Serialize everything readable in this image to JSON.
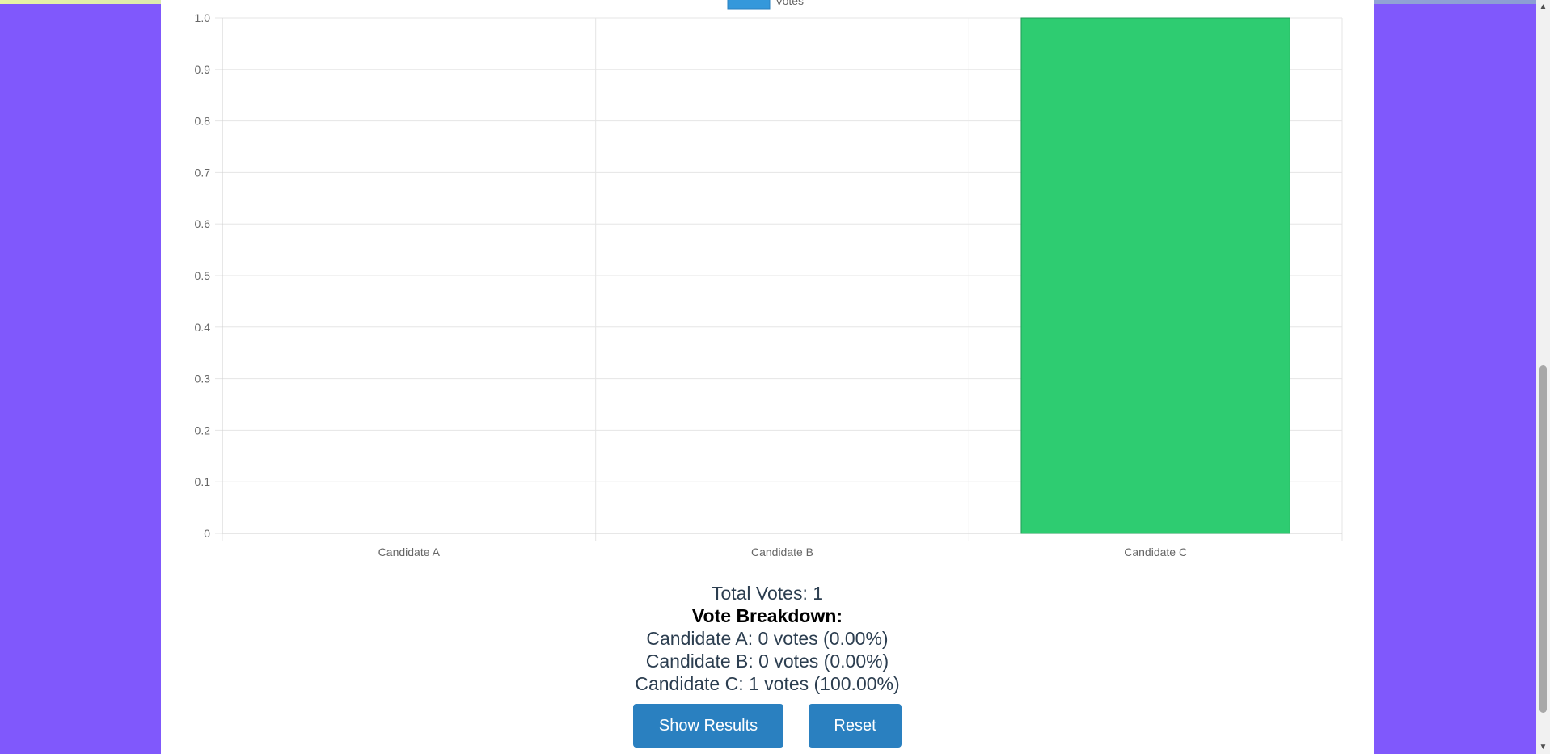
{
  "chart_data": {
    "type": "bar",
    "categories": [
      "Candidate A",
      "Candidate B",
      "Candidate C"
    ],
    "series": [
      {
        "name": "Votes",
        "values": [
          0,
          0,
          1
        ]
      }
    ],
    "ylim": [
      0,
      1.0
    ],
    "yticks": [
      "0",
      "0.1",
      "0.2",
      "0.3",
      "0.4",
      "0.5",
      "0.6",
      "0.7",
      "0.8",
      "0.9",
      "1.0"
    ],
    "grid": true,
    "legend": "top",
    "bar_colors": [
      "#2ecc71",
      "#2ecc71",
      "#2ecc71"
    ],
    "legend_color": "#3498db"
  },
  "summary": {
    "total": "Total Votes: 1",
    "breakdown_title": "Vote Breakdown:",
    "lines": [
      "Candidate A: 0 votes (0.00%)",
      "Candidate B: 0 votes (0.00%)",
      "Candidate C: 1 votes (100.00%)"
    ]
  },
  "buttons": {
    "show_results": "Show Results",
    "reset": "Reset"
  },
  "colors": {
    "page_background": "#8058fc",
    "button": "#2a80c0"
  }
}
